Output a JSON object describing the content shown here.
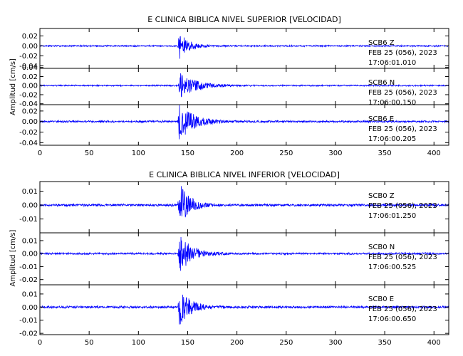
{
  "chart_data": [
    {
      "type": "line",
      "title": "E CLINICA BIBLICA NIVEL SUPERIOR [VELOCIDAD]",
      "ylabel": "Amplitud [cm/s]",
      "xlabel": "",
      "xlim": [
        0,
        415
      ],
      "xticks": [
        "0",
        "50",
        "100",
        "150",
        "200",
        "250",
        "300",
        "350",
        "400"
      ],
      "line_color": "#0000ff",
      "seed": 7,
      "channels": [
        {
          "label": "SCB6   Z",
          "date": "FEB 25 (056), 2023",
          "time": "17:06:01.010",
          "ylim": [
            -0.045,
            0.035
          ],
          "yticks": [
            "0.02",
            "0.00",
            "-0.02",
            "-0.04"
          ],
          "ytick_values": [
            0.02,
            0.0,
            -0.02,
            -0.04
          ],
          "noise": 0.0012,
          "arrival_s": 140,
          "peak": 0.028,
          "decay_s": 9
        },
        {
          "label": "SCB6   N",
          "date": "FEB 25 (056), 2023",
          "time": "17:06:00.150",
          "ylim": [
            -0.042,
            0.038
          ],
          "yticks": [
            "0.04",
            "0.02",
            "0.00",
            "-0.02",
            "-0.04"
          ],
          "ytick_values": [
            0.04,
            0.02,
            0.0,
            -0.02,
            -0.04
          ],
          "noise": 0.0012,
          "arrival_s": 140,
          "peak": 0.03,
          "decay_s": 16
        },
        {
          "label": "SCB6   E",
          "date": "FEB 25 (056), 2023",
          "time": "17:06:00.205",
          "ylim": [
            -0.045,
            0.032
          ],
          "yticks": [
            "0.02",
            "0.00",
            "-0.02",
            "-0.04"
          ],
          "ytick_values": [
            0.02,
            0.0,
            -0.02,
            -0.04
          ],
          "noise": 0.0015,
          "arrival_s": 140,
          "peak": 0.036,
          "decay_s": 14
        }
      ]
    },
    {
      "type": "line",
      "title": "E CLINICA BIBLICA NIVEL INFERIOR [VELOCIDAD]",
      "ylabel": "Amplitud [cm/s]",
      "xlabel": "",
      "xlim": [
        0,
        415
      ],
      "xticks": [
        "0",
        "50",
        "100",
        "150",
        "200",
        "250",
        "300",
        "350",
        "400"
      ],
      "line_color": "#0000ff",
      "seed": 11,
      "channels": [
        {
          "label": "SCB0   Z",
          "date": "FEB 25 (056), 2023",
          "time": "17:06:01.250",
          "ylim": [
            -0.02,
            0.017
          ],
          "yticks": [
            "0.01",
            "0.00",
            "-0.01"
          ],
          "ytick_values": [
            0.01,
            0.0,
            -0.01
          ],
          "noise": 0.0007,
          "arrival_s": 140,
          "peak": 0.016,
          "decay_s": 10
        },
        {
          "label": "SCB0   N",
          "date": "FEB 25 (056), 2023",
          "time": "17:06:00.525",
          "ylim": [
            -0.024,
            0.016
          ],
          "yticks": [
            "0.01",
            "0.00",
            "-0.01",
            "-0.02"
          ],
          "ytick_values": [
            0.01,
            0.0,
            -0.01,
            -0.02
          ],
          "noise": 0.0006,
          "arrival_s": 140,
          "peak": 0.015,
          "decay_s": 12
        },
        {
          "label": "SCB0   E",
          "date": "FEB 25 (056), 2023",
          "time": "17:06:00.650",
          "ylim": [
            -0.021,
            0.017
          ],
          "yticks": [
            "0.01",
            "0.00",
            "-0.01",
            "-0.02"
          ],
          "ytick_values": [
            0.01,
            0.0,
            -0.01,
            -0.02
          ],
          "noise": 0.0007,
          "arrival_s": 140,
          "peak": 0.014,
          "decay_s": 11
        }
      ]
    }
  ]
}
